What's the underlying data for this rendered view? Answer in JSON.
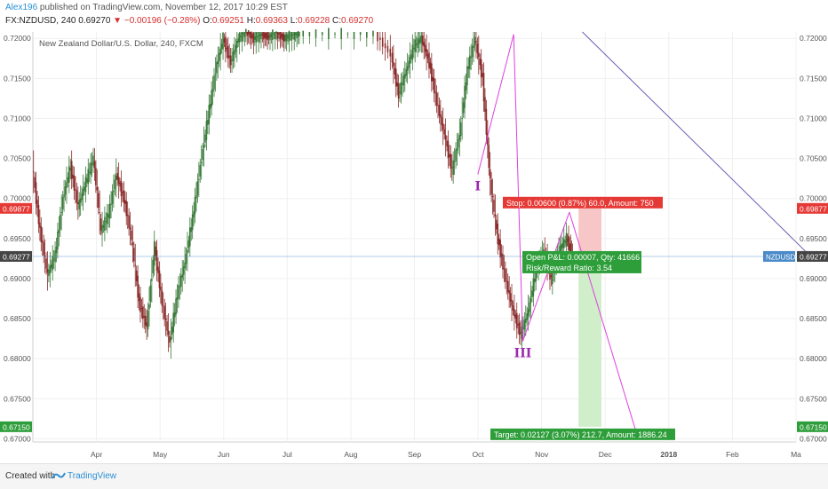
{
  "header": {
    "author": "Alex196",
    "published_text": " published on TradingView.com, November 12, 2017 10:29 EST",
    "symbol_line": "FX:NZDUSD, 240  0.69270",
    "change": "−0.00196 (−0.28%)",
    "open_label": "O:",
    "open_value": "0.69251",
    "high_label": "H:",
    "high_value": "0.69363",
    "low_label": "L:",
    "low_value": "0.69228",
    "close_label": "C:",
    "close_value": "0.69270"
  },
  "footer": {
    "created": "Created with",
    "brand": "TradingView",
    "icon": "tradingview-logo-icon"
  },
  "chart_data": {
    "type": "line",
    "instrument_title": "New Zealand Dollar/U.S. Dollar, 240, FXCM",
    "y_ticks": [
      "0.72000",
      "0.71500",
      "0.71000",
      "0.70500",
      "0.70000",
      "0.69500",
      "0.69000",
      "0.68500",
      "0.68000",
      "0.67500",
      "0.67000"
    ],
    "ylim": [
      0.6696,
      0.7208
    ],
    "x_ticks": [
      {
        "label": "Apr",
        "x": 0.0833
      },
      {
        "label": "May",
        "x": 0.1667
      },
      {
        "label": "Jun",
        "x": 0.25
      },
      {
        "label": "Jul",
        "x": 0.3333
      },
      {
        "label": "Aug",
        "x": 0.4167
      },
      {
        "label": "Sep",
        "x": 0.5
      },
      {
        "label": "Oct",
        "x": 0.5833
      },
      {
        "label": "Nov",
        "x": 0.6667
      },
      {
        "label": "Dec",
        "x": 0.75
      },
      {
        "label": "2018",
        "x": 0.8333
      },
      {
        "label": "Feb",
        "x": 0.9167
      },
      {
        "label": "Ma",
        "x": 1.0
      }
    ],
    "xlim": [
      0,
      1
    ],
    "price_path": [
      [
        0.0,
        0.704
      ],
      [
        0.01,
        0.696
      ],
      [
        0.02,
        0.6905
      ],
      [
        0.03,
        0.693
      ],
      [
        0.04,
        0.7
      ],
      [
        0.05,
        0.704
      ],
      [
        0.06,
        0.699
      ],
      [
        0.07,
        0.702
      ],
      [
        0.08,
        0.705
      ],
      [
        0.09,
        0.696
      ],
      [
        0.1,
        0.698
      ],
      [
        0.11,
        0.703
      ],
      [
        0.12,
        0.7
      ],
      [
        0.13,
        0.695
      ],
      [
        0.14,
        0.687
      ],
      [
        0.15,
        0.684
      ],
      [
        0.16,
        0.694
      ],
      [
        0.17,
        0.687
      ],
      [
        0.18,
        0.682
      ],
      [
        0.19,
        0.688
      ],
      [
        0.2,
        0.692
      ],
      [
        0.21,
        0.6975
      ],
      [
        0.22,
        0.704
      ],
      [
        0.23,
        0.71
      ],
      [
        0.24,
        0.716
      ],
      [
        0.25,
        0.72
      ],
      [
        0.26,
        0.717
      ],
      [
        0.27,
        0.72
      ],
      [
        0.28,
        0.721
      ],
      [
        0.29,
        0.72
      ],
      [
        0.3,
        0.7205
      ],
      [
        0.31,
        0.7202
      ],
      [
        0.32,
        0.7208
      ],
      [
        0.33,
        0.72
      ],
      [
        0.34,
        0.7205
      ],
      [
        0.35,
        0.7206
      ],
      [
        0.4,
        0.7206
      ],
      [
        0.45,
        0.7206
      ],
      [
        0.47,
        0.718
      ],
      [
        0.48,
        0.713
      ],
      [
        0.49,
        0.716
      ],
      [
        0.5,
        0.719
      ],
      [
        0.51,
        0.72
      ],
      [
        0.52,
        0.717
      ],
      [
        0.53,
        0.712
      ],
      [
        0.54,
        0.708
      ],
      [
        0.55,
        0.7035
      ],
      [
        0.56,
        0.708
      ],
      [
        0.57,
        0.716
      ],
      [
        0.58,
        0.72
      ],
      [
        0.59,
        0.715
      ],
      [
        0.6,
        0.702
      ],
      [
        0.61,
        0.695
      ],
      [
        0.62,
        0.69
      ],
      [
        0.63,
        0.686
      ],
      [
        0.64,
        0.683
      ],
      [
        0.65,
        0.686
      ],
      [
        0.66,
        0.691
      ],
      [
        0.67,
        0.6935
      ],
      [
        0.68,
        0.69
      ],
      [
        0.69,
        0.6935
      ],
      [
        0.7,
        0.695
      ],
      [
        0.708,
        0.6927
      ]
    ],
    "pattern_points": [
      {
        "x": 0.583,
        "y": 0.703,
        "label": "I"
      },
      {
        "x": 0.63,
        "y": 0.7205,
        "label": ""
      },
      {
        "x": 0.642,
        "y": 0.6822,
        "label": "III"
      },
      {
        "x": 0.703,
        "y": 0.6983,
        "label": ""
      },
      {
        "x": 0.79,
        "y": 0.671,
        "label": ""
      }
    ],
    "trendline": [
      [
        0.72,
        0.7208
      ],
      [
        1.02,
        0.6927
      ]
    ],
    "levels": {
      "stop": "0.69877",
      "last": "0.69277",
      "target": "0.67150"
    },
    "stop_value": 0.69877,
    "last_value": 0.69277,
    "target_value": 0.6715,
    "position": {
      "x_start": 0.715,
      "x_end": 0.745
    },
    "labels": {
      "stop": "Stop: 0.00600 (0.87%) 60.0, Amount: 750",
      "pnl": "Open P&L: 0.00007, Qty: 41666",
      "rr": "Risk/Reward Ratio: 3.54",
      "target": "Target: 0.02127 (3.07%) 212.7, Amount: 1886.24",
      "symbol_tag": "NZDUSD"
    },
    "colors": {
      "stop": "#e53935",
      "target": "#2e9e3a",
      "last": "#4a8ac8",
      "pattern": "#e040e0",
      "trend": "#6a5fb5"
    }
  }
}
